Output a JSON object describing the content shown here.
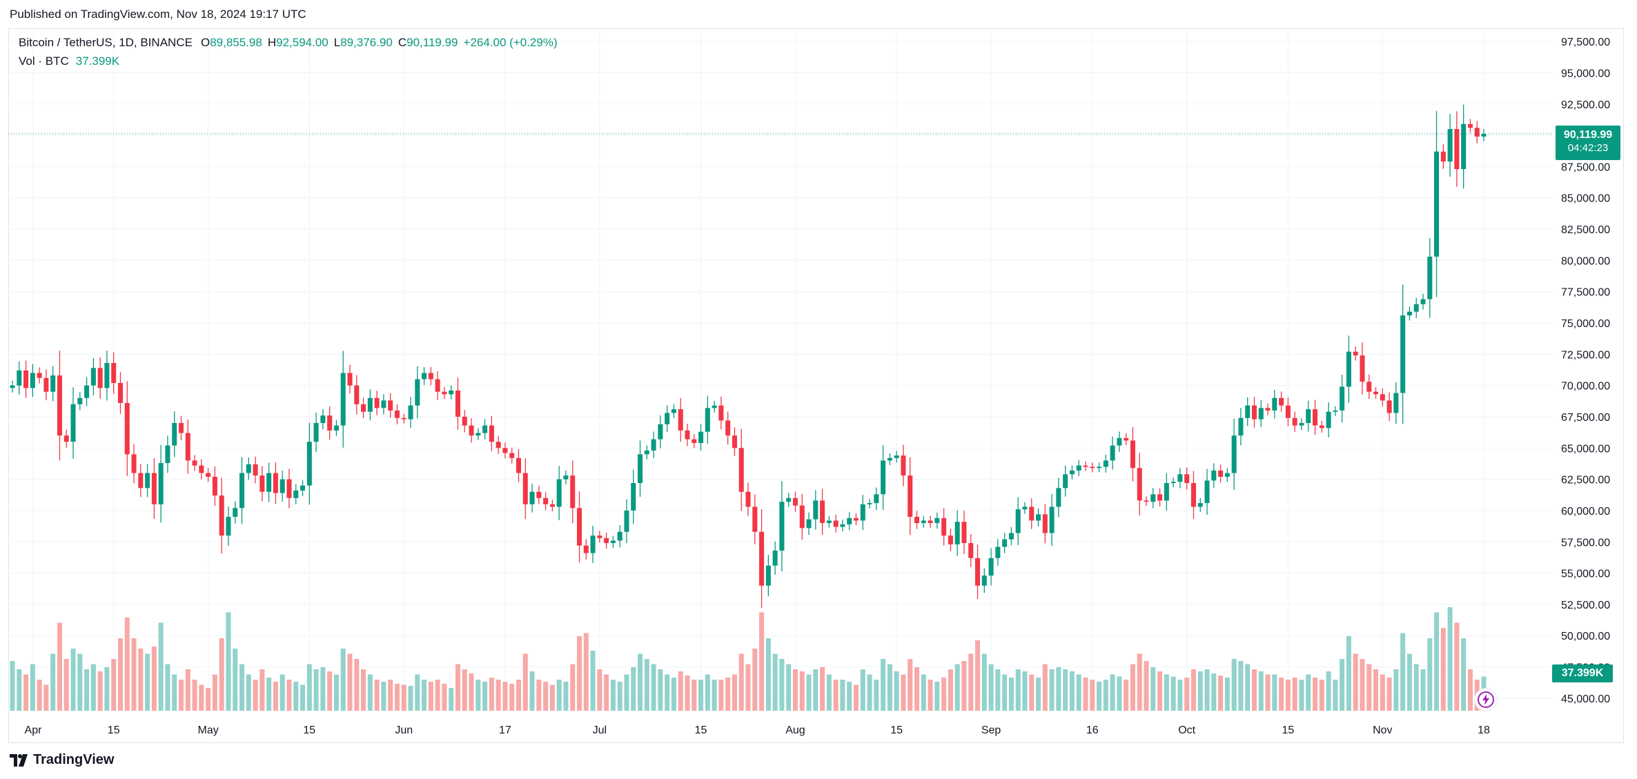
{
  "published": "Published on TradingView.com, Nov 18, 2024 19:17 UTC",
  "legend": {
    "symbol": "Bitcoin / TetherUS, 1D, BINANCE",
    "open_label": "O",
    "open": "89,855.98",
    "high_label": "H",
    "high": "92,594.00",
    "low_label": "L",
    "low": "89,376.90",
    "close_label": "C",
    "close": "90,119.99",
    "change": "+264.00 (+0.29%)"
  },
  "volume": {
    "label": "Vol · BTC",
    "value": "37.399K"
  },
  "price_tag": {
    "price": "90,119.99",
    "countdown": "04:42:23"
  },
  "brand": "TradingView",
  "colors": {
    "up": "#089981",
    "down": "#f23645",
    "up_volume": "#92d2cc",
    "down_volume": "#f7a9a7",
    "grid": "#f0f3fa",
    "last_price_line": "#089981"
  },
  "chart_data": {
    "type": "candlestick",
    "title": "Bitcoin / TetherUS, 1D, BINANCE",
    "xlabel": "",
    "ylabel": "",
    "ylim": [
      44000,
      98500
    ],
    "y_ticks": [
      "97,500.00",
      "95,000.00",
      "92,500.00",
      "90,000.00",
      "87,500.00",
      "85,000.00",
      "82,500.00",
      "80,000.00",
      "77,500.00",
      "75,000.00",
      "72,500.00",
      "70,000.00",
      "67,500.00",
      "65,000.00",
      "62,500.00",
      "60,000.00",
      "57,500.00",
      "55,000.00",
      "52,500.00",
      "50,000.00",
      "47,500.00",
      "45,000.00"
    ],
    "x_ticks": [
      "Apr",
      "15",
      "May",
      "15",
      "Jun",
      "17",
      "Jul",
      "15",
      "Aug",
      "15",
      "Sep",
      "16",
      "Oct",
      "15",
      "Nov",
      "18"
    ],
    "grid": true,
    "last_price": 90119.99,
    "points": [
      {
        "price": 70000,
        "vol": 0.48
      },
      {
        "price": 71200,
        "vol": 0.4
      },
      {
        "price": 69800,
        "vol": 0.35
      },
      {
        "price": 71000,
        "vol": 0.45
      },
      {
        "price": 70600,
        "vol": 0.3
      },
      {
        "price": 69500,
        "vol": 0.25
      },
      {
        "price": 70800,
        "vol": 0.55
      },
      {
        "price": 66000,
        "vol": 0.85
      },
      {
        "price": 65500,
        "vol": 0.5
      },
      {
        "price": 68500,
        "vol": 0.6
      },
      {
        "price": 69000,
        "vol": 0.55
      },
      {
        "price": 70000,
        "vol": 0.4
      },
      {
        "price": 71400,
        "vol": 0.45
      },
      {
        "price": 69800,
        "vol": 0.38
      },
      {
        "price": 71800,
        "vol": 0.42
      },
      {
        "price": 70200,
        "vol": 0.5
      },
      {
        "price": 68600,
        "vol": 0.7
      },
      {
        "price": 64500,
        "vol": 0.9
      },
      {
        "price": 63000,
        "vol": 0.7
      },
      {
        "price": 61800,
        "vol": 0.6
      },
      {
        "price": 63000,
        "vol": 0.55
      },
      {
        "price": 60500,
        "vol": 0.62
      },
      {
        "price": 63800,
        "vol": 0.85
      },
      {
        "price": 65200,
        "vol": 0.45
      },
      {
        "price": 67000,
        "vol": 0.35
      },
      {
        "price": 66200,
        "vol": 0.3
      },
      {
        "price": 64000,
        "vol": 0.4
      },
      {
        "price": 63600,
        "vol": 0.3
      },
      {
        "price": 63000,
        "vol": 0.25
      },
      {
        "price": 62700,
        "vol": 0.22
      },
      {
        "price": 61200,
        "vol": 0.35
      },
      {
        "price": 58000,
        "vol": 0.7
      },
      {
        "price": 59500,
        "vol": 0.95
      },
      {
        "price": 60200,
        "vol": 0.6
      },
      {
        "price": 63000,
        "vol": 0.45
      },
      {
        "price": 63700,
        "vol": 0.35
      },
      {
        "price": 62800,
        "vol": 0.3
      },
      {
        "price": 61500,
        "vol": 0.4
      },
      {
        "price": 63000,
        "vol": 0.32
      },
      {
        "price": 61400,
        "vol": 0.28
      },
      {
        "price": 62500,
        "vol": 0.35
      },
      {
        "price": 61000,
        "vol": 0.3
      },
      {
        "price": 61600,
        "vol": 0.28
      },
      {
        "price": 62000,
        "vol": 0.25
      },
      {
        "price": 65500,
        "vol": 0.45
      },
      {
        "price": 67000,
        "vol": 0.4
      },
      {
        "price": 67600,
        "vol": 0.42
      },
      {
        "price": 66400,
        "vol": 0.38
      },
      {
        "price": 66800,
        "vol": 0.35
      },
      {
        "price": 71000,
        "vol": 0.6
      },
      {
        "price": 70000,
        "vol": 0.55
      },
      {
        "price": 68500,
        "vol": 0.5
      },
      {
        "price": 67900,
        "vol": 0.4
      },
      {
        "price": 69000,
        "vol": 0.35
      },
      {
        "price": 68200,
        "vol": 0.3
      },
      {
        "price": 68800,
        "vol": 0.28
      },
      {
        "price": 68000,
        "vol": 0.3
      },
      {
        "price": 67400,
        "vol": 0.26
      },
      {
        "price": 67300,
        "vol": 0.25
      },
      {
        "price": 68400,
        "vol": 0.24
      },
      {
        "price": 70500,
        "vol": 0.35
      },
      {
        "price": 71000,
        "vol": 0.3
      },
      {
        "price": 70500,
        "vol": 0.28
      },
      {
        "price": 69500,
        "vol": 0.3
      },
      {
        "price": 69300,
        "vol": 0.26
      },
      {
        "price": 69600,
        "vol": 0.22
      },
      {
        "price": 67500,
        "vol": 0.45
      },
      {
        "price": 66800,
        "vol": 0.4
      },
      {
        "price": 66000,
        "vol": 0.36
      },
      {
        "price": 66200,
        "vol": 0.3
      },
      {
        "price": 66800,
        "vol": 0.28
      },
      {
        "price": 65500,
        "vol": 0.32
      },
      {
        "price": 65000,
        "vol": 0.3
      },
      {
        "price": 64600,
        "vol": 0.28
      },
      {
        "price": 64200,
        "vol": 0.26
      },
      {
        "price": 63000,
        "vol": 0.3
      },
      {
        "price": 60500,
        "vol": 0.55
      },
      {
        "price": 61500,
        "vol": 0.38
      },
      {
        "price": 61000,
        "vol": 0.3
      },
      {
        "price": 60500,
        "vol": 0.28
      },
      {
        "price": 60300,
        "vol": 0.25
      },
      {
        "price": 62500,
        "vol": 0.3
      },
      {
        "price": 62800,
        "vol": 0.28
      },
      {
        "price": 60200,
        "vol": 0.45
      },
      {
        "price": 57200,
        "vol": 0.72
      },
      {
        "price": 56600,
        "vol": 0.75
      },
      {
        "price": 58000,
        "vol": 0.58
      },
      {
        "price": 57800,
        "vol": 0.4
      },
      {
        "price": 57400,
        "vol": 0.35
      },
      {
        "price": 57600,
        "vol": 0.3
      },
      {
        "price": 58300,
        "vol": 0.28
      },
      {
        "price": 60000,
        "vol": 0.35
      },
      {
        "price": 62200,
        "vol": 0.42
      },
      {
        "price": 64500,
        "vol": 0.55
      },
      {
        "price": 64800,
        "vol": 0.5
      },
      {
        "price": 65700,
        "vol": 0.45
      },
      {
        "price": 66900,
        "vol": 0.4
      },
      {
        "price": 67800,
        "vol": 0.35
      },
      {
        "price": 68100,
        "vol": 0.32
      },
      {
        "price": 66400,
        "vol": 0.38
      },
      {
        "price": 65700,
        "vol": 0.34
      },
      {
        "price": 65400,
        "vol": 0.3
      },
      {
        "price": 66300,
        "vol": 0.3
      },
      {
        "price": 68200,
        "vol": 0.35
      },
      {
        "price": 68400,
        "vol": 0.3
      },
      {
        "price": 67200,
        "vol": 0.3
      },
      {
        "price": 66000,
        "vol": 0.32
      },
      {
        "price": 65000,
        "vol": 0.35
      },
      {
        "price": 61500,
        "vol": 0.55
      },
      {
        "price": 60300,
        "vol": 0.45
      },
      {
        "price": 58300,
        "vol": 0.6
      },
      {
        "price": 54000,
        "vol": 0.95
      },
      {
        "price": 55600,
        "vol": 0.7
      },
      {
        "price": 56800,
        "vol": 0.55
      },
      {
        "price": 60700,
        "vol": 0.5
      },
      {
        "price": 61000,
        "vol": 0.45
      },
      {
        "price": 60400,
        "vol": 0.4
      },
      {
        "price": 58600,
        "vol": 0.38
      },
      {
        "price": 59300,
        "vol": 0.35
      },
      {
        "price": 60800,
        "vol": 0.4
      },
      {
        "price": 59000,
        "vol": 0.42
      },
      {
        "price": 59200,
        "vol": 0.35
      },
      {
        "price": 58700,
        "vol": 0.3
      },
      {
        "price": 58900,
        "vol": 0.3
      },
      {
        "price": 59400,
        "vol": 0.28
      },
      {
        "price": 59200,
        "vol": 0.25
      },
      {
        "price": 60500,
        "vol": 0.4
      },
      {
        "price": 60600,
        "vol": 0.35
      },
      {
        "price": 61300,
        "vol": 0.3
      },
      {
        "price": 64000,
        "vol": 0.5
      },
      {
        "price": 64200,
        "vol": 0.45
      },
      {
        "price": 64400,
        "vol": 0.38
      },
      {
        "price": 62800,
        "vol": 0.35
      },
      {
        "price": 59500,
        "vol": 0.5
      },
      {
        "price": 59000,
        "vol": 0.42
      },
      {
        "price": 59200,
        "vol": 0.35
      },
      {
        "price": 59000,
        "vol": 0.3
      },
      {
        "price": 59400,
        "vol": 0.28
      },
      {
        "price": 58000,
        "vol": 0.32
      },
      {
        "price": 57300,
        "vol": 0.4
      },
      {
        "price": 59100,
        "vol": 0.45
      },
      {
        "price": 57400,
        "vol": 0.48
      },
      {
        "price": 56200,
        "vol": 0.55
      },
      {
        "price": 54000,
        "vol": 0.68
      },
      {
        "price": 54800,
        "vol": 0.55
      },
      {
        "price": 56200,
        "vol": 0.45
      },
      {
        "price": 57100,
        "vol": 0.4
      },
      {
        "price": 57700,
        "vol": 0.35
      },
      {
        "price": 58200,
        "vol": 0.32
      },
      {
        "price": 60100,
        "vol": 0.4
      },
      {
        "price": 60300,
        "vol": 0.38
      },
      {
        "price": 59200,
        "vol": 0.35
      },
      {
        "price": 59700,
        "vol": 0.32
      },
      {
        "price": 58200,
        "vol": 0.45
      },
      {
        "price": 60300,
        "vol": 0.4
      },
      {
        "price": 61800,
        "vol": 0.42
      },
      {
        "price": 62900,
        "vol": 0.4
      },
      {
        "price": 63200,
        "vol": 0.38
      },
      {
        "price": 63600,
        "vol": 0.35
      },
      {
        "price": 63500,
        "vol": 0.32
      },
      {
        "price": 63400,
        "vol": 0.3
      },
      {
        "price": 63500,
        "vol": 0.28
      },
      {
        "price": 64000,
        "vol": 0.3
      },
      {
        "price": 65200,
        "vol": 0.35
      },
      {
        "price": 65800,
        "vol": 0.33
      },
      {
        "price": 65600,
        "vol": 0.3
      },
      {
        "price": 63400,
        "vol": 0.45
      },
      {
        "price": 60800,
        "vol": 0.55
      },
      {
        "price": 60700,
        "vol": 0.48
      },
      {
        "price": 61300,
        "vol": 0.42
      },
      {
        "price": 60800,
        "vol": 0.38
      },
      {
        "price": 62200,
        "vol": 0.35
      },
      {
        "price": 62300,
        "vol": 0.33
      },
      {
        "price": 62900,
        "vol": 0.3
      },
      {
        "price": 62200,
        "vol": 0.32
      },
      {
        "price": 60300,
        "vol": 0.4
      },
      {
        "price": 60600,
        "vol": 0.38
      },
      {
        "price": 62400,
        "vol": 0.4
      },
      {
        "price": 63200,
        "vol": 0.36
      },
      {
        "price": 62700,
        "vol": 0.34
      },
      {
        "price": 63000,
        "vol": 0.32
      },
      {
        "price": 66000,
        "vol": 0.5
      },
      {
        "price": 67400,
        "vol": 0.48
      },
      {
        "price": 68400,
        "vol": 0.45
      },
      {
        "price": 67300,
        "vol": 0.4
      },
      {
        "price": 68200,
        "vol": 0.38
      },
      {
        "price": 68000,
        "vol": 0.35
      },
      {
        "price": 69000,
        "vol": 0.35
      },
      {
        "price": 68400,
        "vol": 0.32
      },
      {
        "price": 67400,
        "vol": 0.3
      },
      {
        "price": 66800,
        "vol": 0.32
      },
      {
        "price": 67000,
        "vol": 0.3
      },
      {
        "price": 68100,
        "vol": 0.35
      },
      {
        "price": 66800,
        "vol": 0.32
      },
      {
        "price": 66600,
        "vol": 0.3
      },
      {
        "price": 67900,
        "vol": 0.38
      },
      {
        "price": 68000,
        "vol": 0.3
      },
      {
        "price": 69900,
        "vol": 0.5
      },
      {
        "price": 72700,
        "vol": 0.72
      },
      {
        "price": 72400,
        "vol": 0.55
      },
      {
        "price": 70300,
        "vol": 0.5
      },
      {
        "price": 69500,
        "vol": 0.45
      },
      {
        "price": 69300,
        "vol": 0.4
      },
      {
        "price": 68800,
        "vol": 0.35
      },
      {
        "price": 67800,
        "vol": 0.32
      },
      {
        "price": 69400,
        "vol": 0.4
      },
      {
        "price": 75600,
        "vol": 0.75
      },
      {
        "price": 75900,
        "vol": 0.55
      },
      {
        "price": 76500,
        "vol": 0.45
      },
      {
        "price": 76900,
        "vol": 0.4
      },
      {
        "price": 80300,
        "vol": 0.7
      },
      {
        "price": 88700,
        "vol": 0.95
      },
      {
        "price": 87900,
        "vol": 0.8
      },
      {
        "price": 90500,
        "vol": 1.0
      },
      {
        "price": 87300,
        "vol": 0.85
      },
      {
        "price": 90900,
        "vol": 0.7
      },
      {
        "price": 90600,
        "vol": 0.4
      },
      {
        "price": 89900,
        "vol": 0.3
      },
      {
        "price": 90120,
        "vol": 0.33
      }
    ]
  }
}
